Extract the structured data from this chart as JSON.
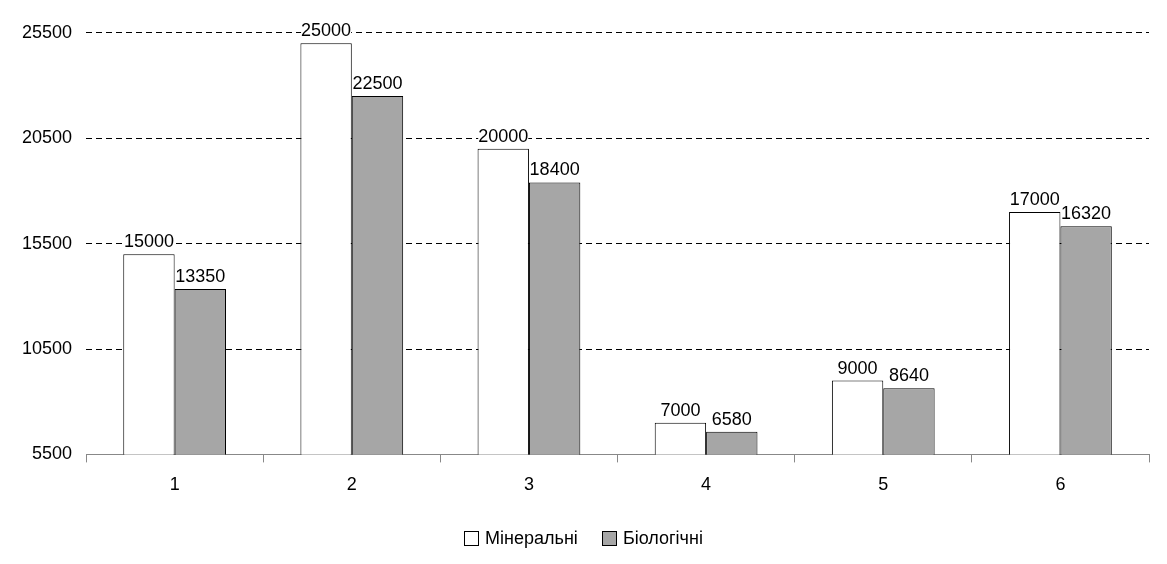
{
  "chart_data": {
    "type": "bar",
    "categories": [
      "1",
      "2",
      "3",
      "4",
      "5",
      "6"
    ],
    "series": [
      {
        "name": "Мінеральні",
        "color": "#ffffff",
        "values": [
          15000,
          25000,
          20000,
          7000,
          9000,
          17000
        ]
      },
      {
        "name": "Біологічні",
        "color": "#a6a6a6",
        "values": [
          13350,
          22500,
          18400,
          6580,
          8640,
          16320
        ]
      }
    ],
    "ylim": [
      5500,
      25500
    ],
    "yticks": [
      5500,
      10500,
      15500,
      20500,
      25500
    ],
    "grid": "y",
    "line_style": "dashed",
    "legend": "bottom",
    "data_labels": true
  }
}
